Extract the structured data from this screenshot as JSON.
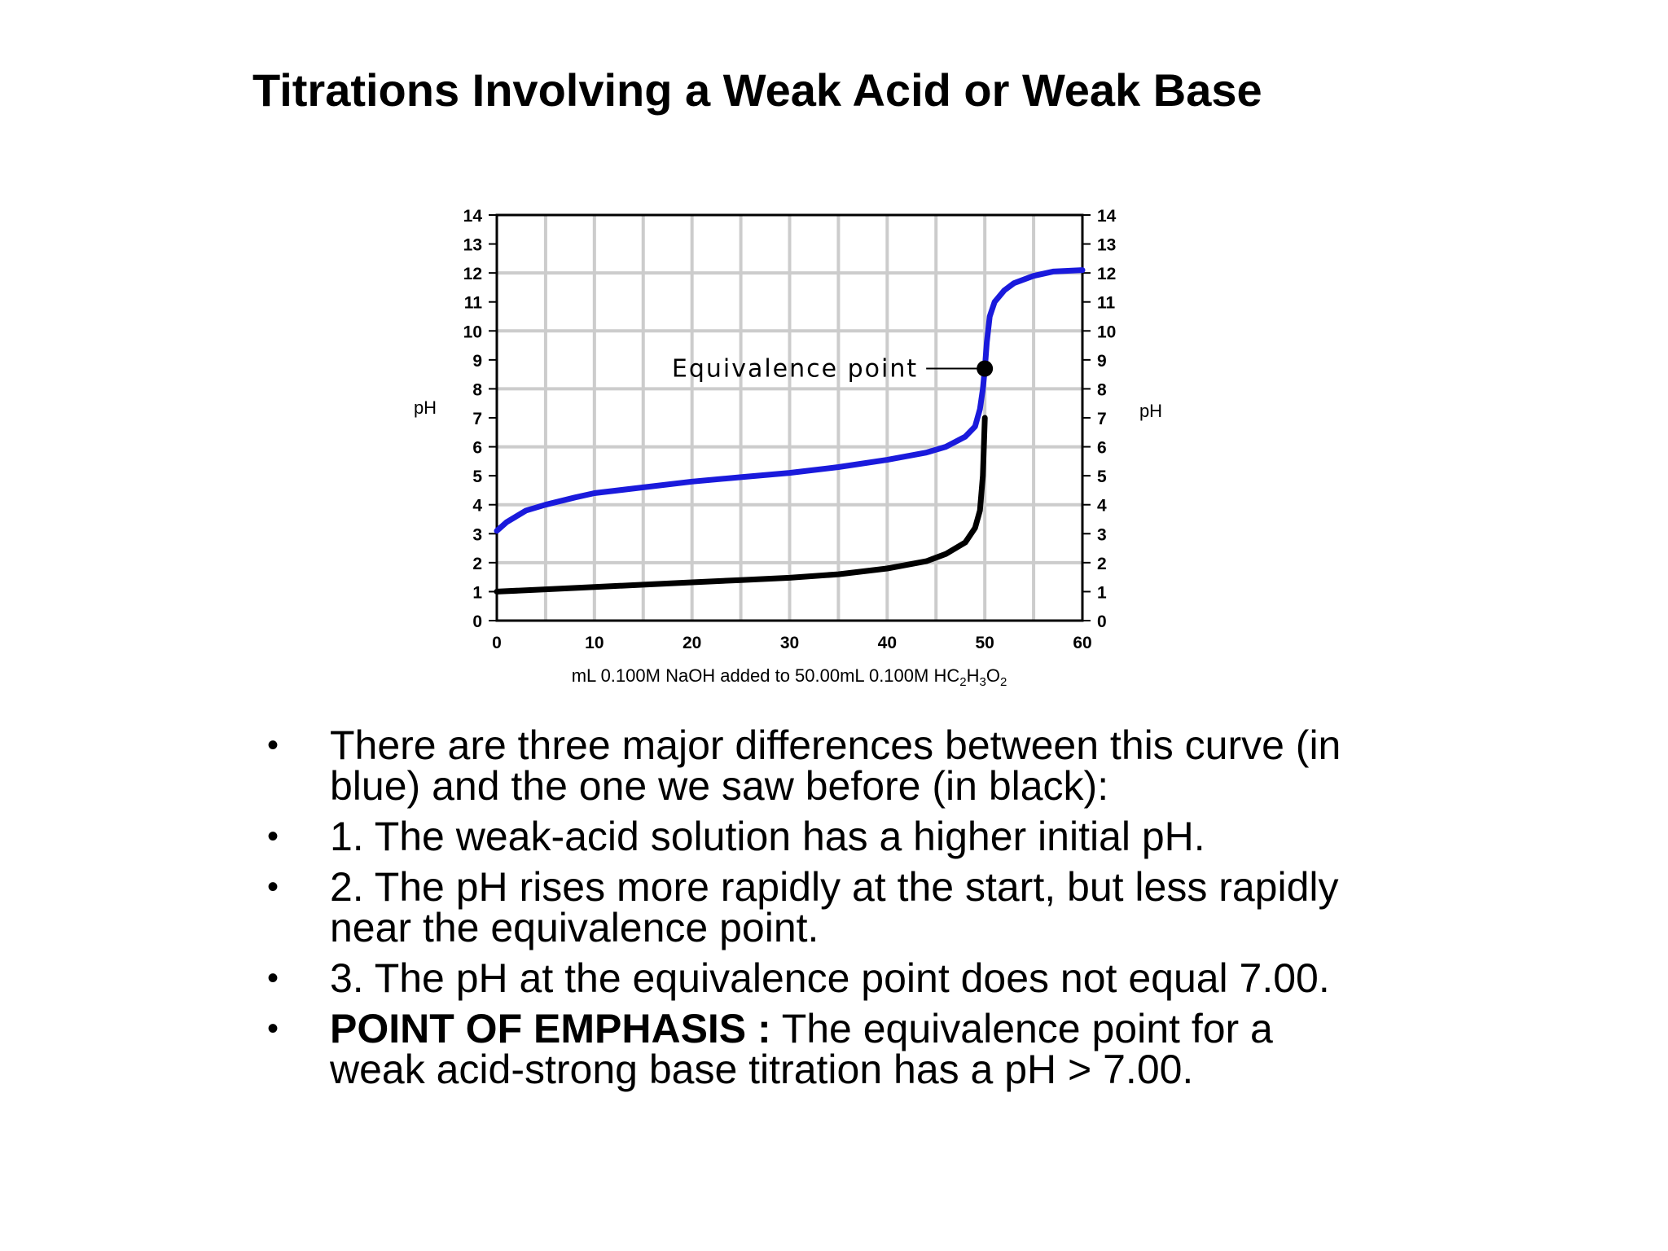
{
  "slide": {
    "title": "Titrations Involving a Weak Acid or Weak Base"
  },
  "chart_data": {
    "type": "line",
    "xlabel": "mL 0.100M NaOH added to 50.00mL 0.100M HC",
    "xlabel_sub1": "2",
    "xlabel_mid": "H",
    "xlabel_sub2": "3",
    "xlabel_end": "O",
    "xlabel_sub3": "2",
    "ylabel_left": "pH",
    "ylabel_right": "pH",
    "xlim": [
      0,
      60
    ],
    "ylim": [
      0,
      14
    ],
    "x_ticks": [
      0,
      10,
      20,
      30,
      40,
      50,
      60
    ],
    "y_ticks": [
      0,
      1,
      2,
      3,
      4,
      5,
      6,
      7,
      8,
      9,
      10,
      11,
      12,
      13,
      14
    ],
    "grid": true,
    "annotation": {
      "text": "Equivalence point",
      "x": 50,
      "y": 8.7
    },
    "series": [
      {
        "color": "#1a1adc",
        "x": [
          0,
          1,
          3,
          5,
          8,
          10,
          15,
          20,
          25,
          30,
          35,
          40,
          44,
          46,
          48,
          49,
          49.5,
          49.8,
          50,
          50.2,
          50.5,
          51,
          52,
          53,
          55,
          57,
          60
        ],
        "y": [
          3.1,
          3.4,
          3.8,
          4.0,
          4.25,
          4.4,
          4.6,
          4.8,
          4.95,
          5.1,
          5.3,
          5.55,
          5.8,
          6.0,
          6.35,
          6.7,
          7.3,
          8.0,
          8.7,
          9.6,
          10.5,
          11.0,
          11.4,
          11.65,
          11.9,
          12.05,
          12.1
        ]
      },
      {
        "color": "#000000",
        "x": [
          0,
          5,
          10,
          15,
          20,
          25,
          30,
          35,
          40,
          44,
          46,
          48,
          49,
          49.5,
          49.8,
          50
        ],
        "y": [
          1.0,
          1.08,
          1.16,
          1.24,
          1.32,
          1.4,
          1.48,
          1.6,
          1.8,
          2.05,
          2.3,
          2.7,
          3.2,
          3.8,
          5.0,
          7.0
        ]
      }
    ]
  },
  "bullets": [
    {
      "bold": "",
      "text": "There are three major differences between this curve (in blue) and the one we saw before (in black):"
    },
    {
      "bold": "",
      "text": "1. The weak-acid solution has a higher initial pH."
    },
    {
      "bold": "",
      "text": "2. The pH rises more rapidly at the start, but less rapidly near the equivalence point."
    },
    {
      "bold": "",
      "text": "3. The pH at the equivalence point does not equal 7.00."
    },
    {
      "bold": "POINT OF EMPHASIS :",
      "text": " The equivalence point for a weak acid-strong base titration has a pH > 7.00."
    }
  ]
}
